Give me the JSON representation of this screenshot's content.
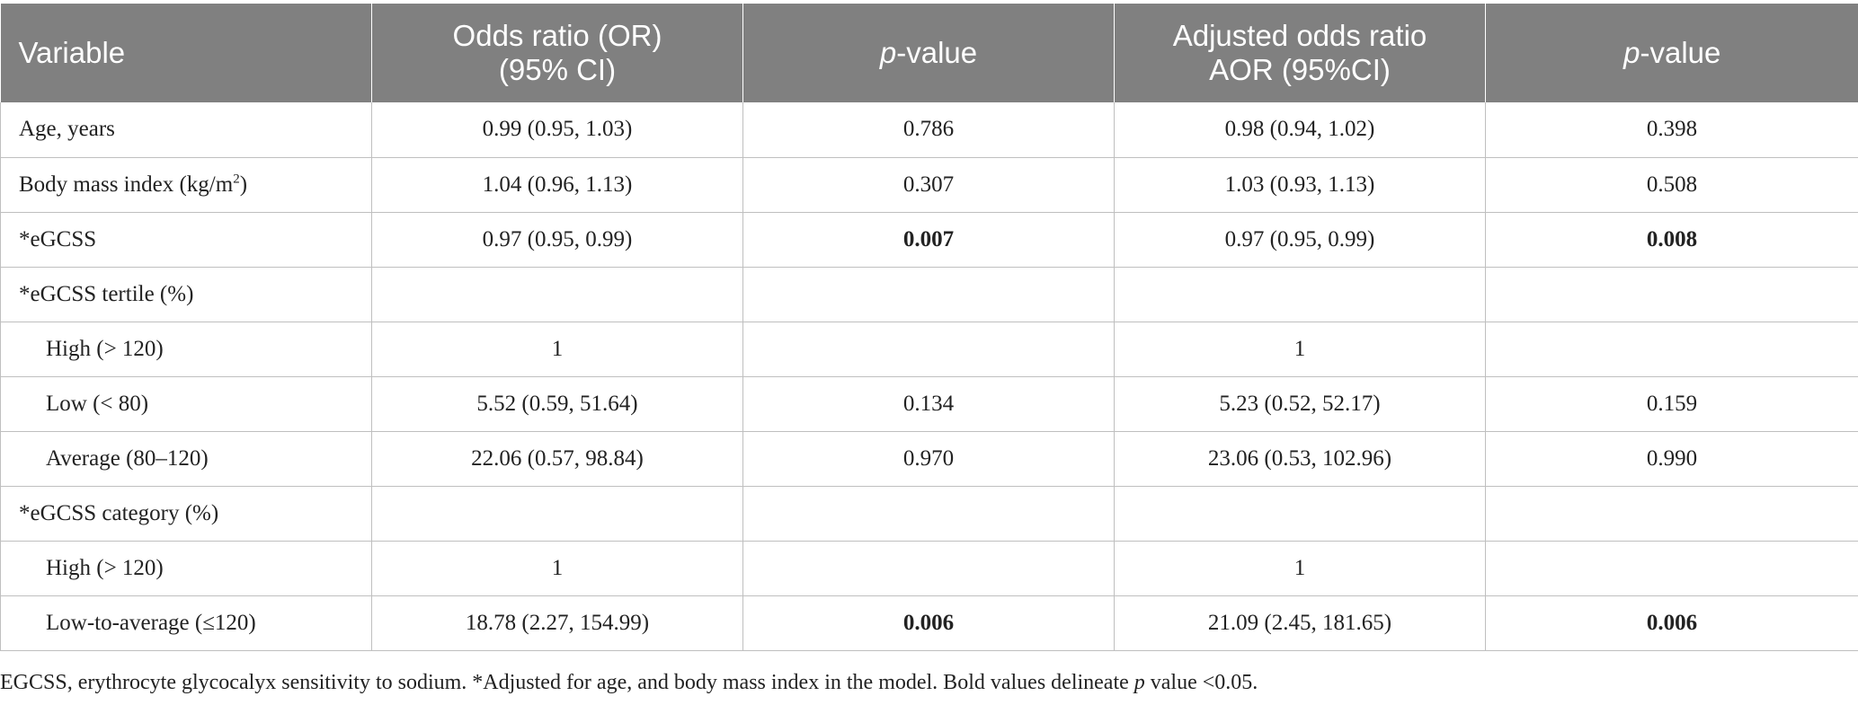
{
  "header": {
    "variable": "Variable",
    "or_line1": "Odds ratio (OR)",
    "or_line2": "(95% CI)",
    "p1_italic": "p",
    "p1_rest": "-value",
    "aor_line1": "Adjusted odds ratio",
    "aor_line2": "AOR (95%CI)",
    "p2_italic": "p",
    "p2_rest": "-value"
  },
  "rows": [
    {
      "variable": "Age, years",
      "or": "0.99 (0.95, 1.03)",
      "p1": "0.786",
      "aor": "0.98 (0.94, 1.02)",
      "p2": "0.398"
    },
    {
      "variable": "Body mass index (kg/m",
      "variable_sup": "2",
      "variable_end": ")",
      "or": "1.04 (0.96, 1.13)",
      "p1": "0.307",
      "aor": "1.03 (0.93, 1.13)",
      "p2": "0.508"
    },
    {
      "variable": "*eGCSS",
      "or": "0.97 (0.95, 0.99)",
      "p1": "0.007",
      "aor": "0.97 (0.95, 0.99)",
      "p2": "0.008"
    },
    {
      "variable": "*eGCSS tertile (%)",
      "or": "",
      "p1": "",
      "aor": "",
      "p2": ""
    },
    {
      "variable": "High (> 120)",
      "or": "1",
      "p1": "",
      "aor": "1",
      "p2": ""
    },
    {
      "variable": "Low (< 80)",
      "or": "5.52 (0.59, 51.64)",
      "p1": "0.134",
      "aor": "5.23 (0.52, 52.17)",
      "p2": "0.159"
    },
    {
      "variable": "Average (80–120)",
      "or": "22.06 (0.57, 98.84)",
      "p1": "0.970",
      "aor": "23.06 (0.53, 102.96)",
      "p2": "0.990"
    },
    {
      "variable": "*eGCSS category (%)",
      "or": "",
      "p1": "",
      "aor": "",
      "p2": ""
    },
    {
      "variable": "High (> 120)",
      "or": "1",
      "p1": "",
      "aor": "1",
      "p2": ""
    },
    {
      "variable": "Low-to-average (≤120)",
      "or": "18.78 (2.27, 154.99)",
      "p1": "0.006",
      "aor": "21.09 (2.45, 181.65)",
      "p2": "0.006"
    }
  ],
  "footnote": {
    "part1": "EGCSS, erythrocyte glycocalyx sensitivity to sodium. *Adjusted for age, and body mass index in the model. Bold values delineate ",
    "italic": "p",
    "part2": " value <0.05."
  }
}
